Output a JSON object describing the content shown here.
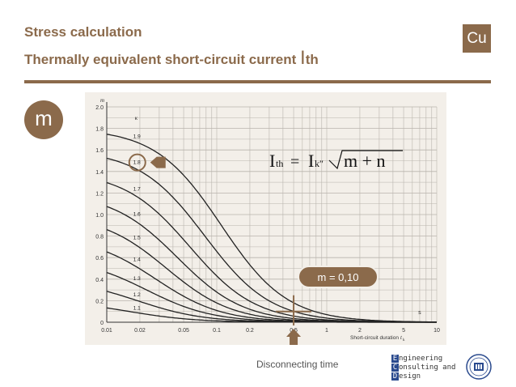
{
  "header": {
    "title_line1": "Stress calculation",
    "title_line2_prefix": "Thermally equivalent short-circuit current ",
    "title_line2_I": "I",
    "title_line2_th": "th",
    "badge": "Cu"
  },
  "side_badge": "m",
  "callout": "m = 0,10",
  "caption": "Disconnecting time",
  "logo": {
    "line1_cap": "E",
    "line1_rest": "ngineering",
    "line2_cap": "C",
    "line2_rest": "onsulting and",
    "line3_cap": "D",
    "line3_rest": "esign"
  },
  "colors": {
    "accent": "#8b6a4b",
    "chart_bg": "#f3efe9",
    "grid": "#b9b4ad",
    "curve": "#222222",
    "logo_blue": "#2a4a8e"
  },
  "chart_data": {
    "type": "line",
    "formula": {
      "lhs": "I",
      "lhs_sub": "th",
      "eq": " = ",
      "rhs": "I",
      "rhs_sub": "k″",
      "radicand": "m + n"
    },
    "y_axis": {
      "label": "m",
      "ticks": [
        "0",
        "0.2",
        "0.4",
        "0.6",
        "0.8",
        "1.0",
        "1.2",
        "1.4",
        "1.6",
        "1.8",
        "2.0"
      ],
      "range": [
        0,
        2.0
      ]
    },
    "x_axis": {
      "label": "Short-circuit duration",
      "label_symbol": "t",
      "label_sub": "k",
      "unit": "s",
      "scale": "log",
      "range": [
        0.01,
        10
      ],
      "ticks": [
        "0.01",
        "0.02",
        "0.05",
        "0.1",
        "0.2",
        "0.5",
        "1",
        "2",
        "5",
        "10"
      ]
    },
    "kappa_symbol": "κ",
    "series": [
      {
        "name": "1.9",
        "half": 0.11
      },
      {
        "name": "1.8",
        "half": 0.078
      },
      {
        "name": "1.7",
        "half": 0.057
      },
      {
        "name": "1.6",
        "half": 0.044
      },
      {
        "name": "1.5",
        "half": 0.035
      },
      {
        "name": "1.4",
        "half": 0.028
      },
      {
        "name": "1.3",
        "half": 0.023
      },
      {
        "name": "1.2",
        "half": 0.019
      },
      {
        "name": "1.1",
        "half": 0.016
      }
    ],
    "highlight": {
      "series": "1.8",
      "disconnect_time": 0.5,
      "m_value": 0.1
    }
  }
}
